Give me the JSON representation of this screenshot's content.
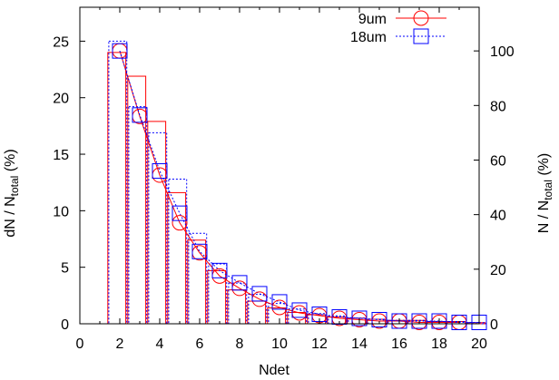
{
  "chart_data": {
    "type": "bar",
    "xlabel": "Ndet",
    "ylabel_left": "dN / N",
    "ylabel_left_sub": "total",
    "ylabel_left_unit": " (%)",
    "ylabel_right": "N / N",
    "ylabel_right_sub": "total",
    "ylabel_right_unit": " (%)",
    "xlim": [
      0,
      20
    ],
    "ylim_left": [
      0,
      28
    ],
    "ylim_right": [
      0,
      116
    ],
    "x_ticks": [
      "0",
      "2",
      "4",
      "6",
      "8",
      "10",
      "12",
      "14",
      "16",
      "18",
      "20"
    ],
    "y_left_ticks": [
      "0",
      "5",
      "10",
      "15",
      "20",
      "25"
    ],
    "y_right_ticks": [
      "0",
      "20",
      "40",
      "60",
      "80",
      "100"
    ],
    "legend_position": "top-right",
    "bars": [
      {
        "name": "9um",
        "color": "#ff0000",
        "style": "solid",
        "x": [
          2,
          3,
          4,
          5,
          6,
          7,
          8,
          9,
          10,
          11,
          12,
          13,
          14,
          15,
          16,
          17,
          18,
          19,
          20
        ],
        "values": [
          24.0,
          21.9,
          17.9,
          11.6,
          7.4,
          4.7,
          3.0,
          2.0,
          1.4,
          1.0,
          0.8,
          0.6,
          0.5,
          0.4,
          0.3,
          0.3,
          0.2,
          0.2,
          0.1
        ]
      },
      {
        "name": "18um",
        "color": "#0000ff",
        "style": "dotted",
        "x": [
          2,
          3,
          4,
          5,
          6,
          7,
          8,
          9,
          10,
          11,
          12,
          13,
          14,
          15,
          16,
          17,
          18,
          19,
          20
        ],
        "values": [
          25.0,
          19.2,
          16.9,
          12.8,
          8.0,
          5.3,
          3.6,
          2.6,
          1.8,
          1.3,
          0.9,
          0.7,
          0.5,
          0.4,
          0.3,
          0.3,
          0.2,
          0.2,
          0.1
        ]
      }
    ],
    "series": [
      {
        "name": "9um",
        "color": "#ff0000",
        "marker": "circle",
        "line": "solid",
        "axis": "right",
        "x": [
          2,
          3,
          4,
          5,
          6,
          7,
          8,
          9,
          10,
          11,
          12,
          13,
          14,
          15,
          16,
          17,
          18,
          19
        ],
        "values": [
          100,
          76,
          54.5,
          37,
          26,
          17.5,
          13,
          9,
          6,
          4,
          3,
          2,
          1.5,
          1,
          1,
          0.5,
          0.5,
          0.5
        ]
      },
      {
        "name": "18um",
        "color": "#0000ff",
        "marker": "square",
        "line": "dotted",
        "axis": "right",
        "x": [
          2,
          3,
          4,
          5,
          6,
          7,
          8,
          9,
          10,
          11,
          12,
          13,
          14,
          15,
          16,
          17,
          18,
          19,
          20
        ],
        "values": [
          100,
          76.5,
          56,
          40.5,
          26.5,
          19.5,
          15,
          11,
          8,
          5,
          3.5,
          2.5,
          2,
          1.5,
          1,
          1,
          1,
          0.5,
          0.5
        ]
      }
    ]
  }
}
